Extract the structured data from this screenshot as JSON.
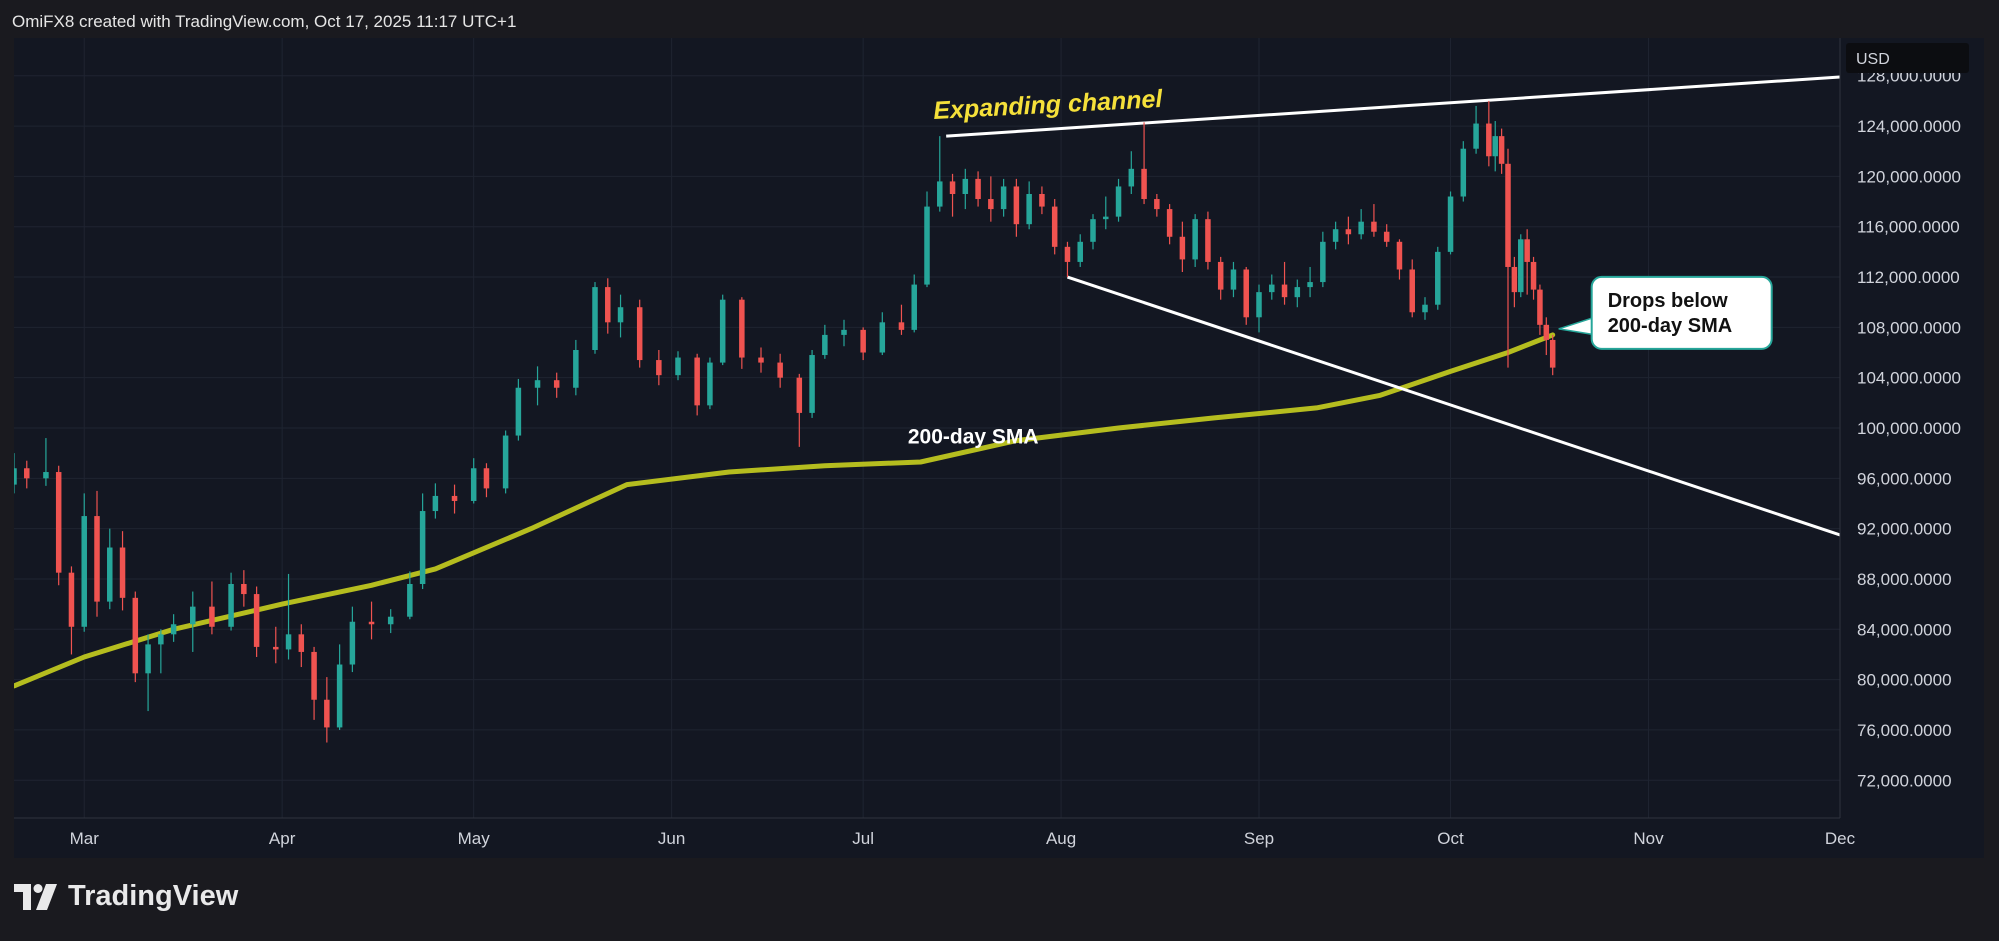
{
  "header": {
    "text": "OmiFX8 created with TradingView.com, Oct 17, 2025 11:17 UTC+1"
  },
  "footer": {
    "brand": "TradingView",
    "logo_icon": "tradingview-logo-icon"
  },
  "colors": {
    "background": "#131722",
    "up": "#26a69a",
    "down": "#ef5350",
    "sma": "#b5bd1f",
    "trendline": "#ffffff",
    "annotation_title": "#f5e03a"
  },
  "chart_data": {
    "type": "candlestick",
    "currency_label": "USD",
    "ylim": [
      69000,
      131000
    ],
    "y_ticks": [
      128000,
      124000,
      120000,
      116000,
      112000,
      108000,
      104000,
      100000,
      96000,
      92000,
      88000,
      84000,
      80000,
      76000,
      72000
    ],
    "y_tick_labels": [
      "128,000.0000",
      "124,000.0000",
      "120,000.0000",
      "116,000.0000",
      "112,000.0000",
      "108,000.0000",
      "104,000.0000",
      "100,000.0000",
      "96,000.0000",
      "92,000.0000",
      "88,000.0000",
      "84,000.0000",
      "80,000.0000",
      "76,000.0000",
      "72,000.0000"
    ],
    "x_range": [
      "2025-02-18",
      "2025-12-01"
    ],
    "x_ticks": [
      "2025-03-01",
      "2025-04-01",
      "2025-05-01",
      "2025-06-01",
      "2025-07-01",
      "2025-08-01",
      "2025-09-01",
      "2025-10-01",
      "2025-11-01",
      "2025-12-01"
    ],
    "x_tick_labels": [
      "Mar",
      "Apr",
      "May",
      "Jun",
      "Jul",
      "Aug",
      "Sep",
      "Oct",
      "Nov",
      "Dec"
    ],
    "sma_label": "200-day SMA",
    "sma_200": [
      {
        "date": "2025-02-18",
        "value": 79500
      },
      {
        "date": "2025-03-01",
        "value": 81800
      },
      {
        "date": "2025-03-15",
        "value": 84000
      },
      {
        "date": "2025-04-01",
        "value": 86000
      },
      {
        "date": "2025-04-15",
        "value": 87500
      },
      {
        "date": "2025-04-25",
        "value": 88800
      },
      {
        "date": "2025-05-10",
        "value": 92000
      },
      {
        "date": "2025-05-25",
        "value": 95500
      },
      {
        "date": "2025-06-10",
        "value": 96500
      },
      {
        "date": "2025-06-25",
        "value": 97000
      },
      {
        "date": "2025-07-10",
        "value": 97300
      },
      {
        "date": "2025-07-25",
        "value": 99000
      },
      {
        "date": "2025-08-10",
        "value": 100000
      },
      {
        "date": "2025-08-25",
        "value": 100800
      },
      {
        "date": "2025-09-10",
        "value": 101600
      },
      {
        "date": "2025-09-20",
        "value": 102600
      },
      {
        "date": "2025-10-01",
        "value": 104500
      },
      {
        "date": "2025-10-10",
        "value": 106000
      },
      {
        "date": "2025-10-17",
        "value": 107400
      }
    ],
    "trendlines": [
      {
        "name": "channel-upper",
        "from": {
          "date": "2025-07-14",
          "value": 123200
        },
        "to": {
          "date": "2025-12-01",
          "value": 127900
        }
      },
      {
        "name": "channel-lower",
        "from": {
          "date": "2025-08-02",
          "value": 112000
        },
        "to": {
          "date": "2025-12-01",
          "value": 91500
        }
      }
    ],
    "annotations": [
      {
        "text": "Expanding channel",
        "date": "2025-07-12",
        "value": 125200
      },
      {
        "text": "200-day SMA",
        "date": "2025-07-08",
        "value": 99400
      },
      {
        "lines": [
          "Drops below",
          "200-day SMA"
        ],
        "date": "2025-10-17",
        "value": 107400,
        "type": "callout"
      }
    ],
    "candles": [
      {
        "date": "2025-02-18",
        "open": 95500,
        "high": 98000,
        "low": 94800,
        "close": 96800
      },
      {
        "date": "2025-02-20",
        "open": 96800,
        "high": 97400,
        "low": 95200,
        "close": 96000
      },
      {
        "date": "2025-02-23",
        "open": 96000,
        "high": 99200,
        "low": 95400,
        "close": 96500
      },
      {
        "date": "2025-02-25",
        "open": 96500,
        "high": 97000,
        "low": 87500,
        "close": 88500
      },
      {
        "date": "2025-02-27",
        "open": 88500,
        "high": 89000,
        "low": 82000,
        "close": 84200
      },
      {
        "date": "2025-03-01",
        "open": 84200,
        "high": 94800,
        "low": 83800,
        "close": 93000
      },
      {
        "date": "2025-03-03",
        "open": 93000,
        "high": 95000,
        "low": 85000,
        "close": 86200
      },
      {
        "date": "2025-03-05",
        "open": 86200,
        "high": 92000,
        "low": 85600,
        "close": 90500
      },
      {
        "date": "2025-03-07",
        "open": 90500,
        "high": 91800,
        "low": 85500,
        "close": 86500
      },
      {
        "date": "2025-03-09",
        "open": 86500,
        "high": 87000,
        "low": 79800,
        "close": 80500
      },
      {
        "date": "2025-03-11",
        "open": 80500,
        "high": 83600,
        "low": 77500,
        "close": 82800
      },
      {
        "date": "2025-03-13",
        "open": 82800,
        "high": 84000,
        "low": 80500,
        "close": 83600
      },
      {
        "date": "2025-03-15",
        "open": 83600,
        "high": 85200,
        "low": 83000,
        "close": 84400
      },
      {
        "date": "2025-03-18",
        "open": 84400,
        "high": 87000,
        "low": 82200,
        "close": 85800
      },
      {
        "date": "2025-03-21",
        "open": 85800,
        "high": 87800,
        "low": 83600,
        "close": 84200
      },
      {
        "date": "2025-03-24",
        "open": 84200,
        "high": 88500,
        "low": 83900,
        "close": 87600
      },
      {
        "date": "2025-03-26",
        "open": 87600,
        "high": 88700,
        "low": 85800,
        "close": 86800
      },
      {
        "date": "2025-03-28",
        "open": 86800,
        "high": 87400,
        "low": 81800,
        "close": 82600
      },
      {
        "date": "2025-03-31",
        "open": 82600,
        "high": 84200,
        "low": 81300,
        "close": 82400
      },
      {
        "date": "2025-04-02",
        "open": 82400,
        "high": 88400,
        "low": 81600,
        "close": 83600
      },
      {
        "date": "2025-04-04",
        "open": 83600,
        "high": 84400,
        "low": 81000,
        "close": 82200
      },
      {
        "date": "2025-04-06",
        "open": 82200,
        "high": 82600,
        "low": 76800,
        "close": 78400
      },
      {
        "date": "2025-04-08",
        "open": 78400,
        "high": 80200,
        "low": 75000,
        "close": 76200
      },
      {
        "date": "2025-04-10",
        "open": 76200,
        "high": 82800,
        "low": 76000,
        "close": 81200
      },
      {
        "date": "2025-04-12",
        "open": 81200,
        "high": 85800,
        "low": 80600,
        "close": 84600
      },
      {
        "date": "2025-04-15",
        "open": 84600,
        "high": 86200,
        "low": 83200,
        "close": 84400
      },
      {
        "date": "2025-04-18",
        "open": 84400,
        "high": 85600,
        "low": 83700,
        "close": 85000
      },
      {
        "date": "2025-04-21",
        "open": 85000,
        "high": 88600,
        "low": 84800,
        "close": 87600
      },
      {
        "date": "2025-04-23",
        "open": 87600,
        "high": 94800,
        "low": 87200,
        "close": 93400
      },
      {
        "date": "2025-04-25",
        "open": 93400,
        "high": 95600,
        "low": 92800,
        "close": 94600
      },
      {
        "date": "2025-04-28",
        "open": 94600,
        "high": 95500,
        "low": 93200,
        "close": 94200
      },
      {
        "date": "2025-05-01",
        "open": 94200,
        "high": 97600,
        "low": 94000,
        "close": 96800
      },
      {
        "date": "2025-05-03",
        "open": 96800,
        "high": 97200,
        "low": 94500,
        "close": 95200
      },
      {
        "date": "2025-05-06",
        "open": 95200,
        "high": 99800,
        "low": 94800,
        "close": 99400
      },
      {
        "date": "2025-05-08",
        "open": 99400,
        "high": 103900,
        "low": 99000,
        "close": 103200
      },
      {
        "date": "2025-05-11",
        "open": 103200,
        "high": 104900,
        "low": 101800,
        "close": 103800
      },
      {
        "date": "2025-05-14",
        "open": 103800,
        "high": 104400,
        "low": 102400,
        "close": 103200
      },
      {
        "date": "2025-05-17",
        "open": 103200,
        "high": 107000,
        "low": 102600,
        "close": 106200
      },
      {
        "date": "2025-05-20",
        "open": 106200,
        "high": 111600,
        "low": 105900,
        "close": 111200
      },
      {
        "date": "2025-05-22",
        "open": 111200,
        "high": 111900,
        "low": 107500,
        "close": 108400
      },
      {
        "date": "2025-05-24",
        "open": 108400,
        "high": 110600,
        "low": 107200,
        "close": 109600
      },
      {
        "date": "2025-05-27",
        "open": 109600,
        "high": 110200,
        "low": 104800,
        "close": 105400
      },
      {
        "date": "2025-05-30",
        "open": 105400,
        "high": 106200,
        "low": 103400,
        "close": 104200
      },
      {
        "date": "2025-06-02",
        "open": 104200,
        "high": 106100,
        "low": 103800,
        "close": 105600
      },
      {
        "date": "2025-06-05",
        "open": 105600,
        "high": 105900,
        "low": 101000,
        "close": 101800
      },
      {
        "date": "2025-06-07",
        "open": 101800,
        "high": 105600,
        "low": 101500,
        "close": 105200
      },
      {
        "date": "2025-06-09",
        "open": 105200,
        "high": 110600,
        "low": 105000,
        "close": 110200
      },
      {
        "date": "2025-06-12",
        "open": 110200,
        "high": 110400,
        "low": 104700,
        "close": 105600
      },
      {
        "date": "2025-06-15",
        "open": 105600,
        "high": 106400,
        "low": 104400,
        "close": 105200
      },
      {
        "date": "2025-06-18",
        "open": 105200,
        "high": 105900,
        "low": 103200,
        "close": 104000
      },
      {
        "date": "2025-06-21",
        "open": 104000,
        "high": 104300,
        "low": 98500,
        "close": 101200
      },
      {
        "date": "2025-06-23",
        "open": 101200,
        "high": 106200,
        "low": 100800,
        "close": 105800
      },
      {
        "date": "2025-06-25",
        "open": 105800,
        "high": 108200,
        "low": 105500,
        "close": 107400
      },
      {
        "date": "2025-06-28",
        "open": 107400,
        "high": 108600,
        "low": 106500,
        "close": 107800
      },
      {
        "date": "2025-07-01",
        "open": 107800,
        "high": 108000,
        "low": 105400,
        "close": 106000
      },
      {
        "date": "2025-07-04",
        "open": 106000,
        "high": 109200,
        "low": 105800,
        "close": 108400
      },
      {
        "date": "2025-07-07",
        "open": 108400,
        "high": 109800,
        "low": 107400,
        "close": 107800
      },
      {
        "date": "2025-07-09",
        "open": 107800,
        "high": 112200,
        "low": 107600,
        "close": 111400
      },
      {
        "date": "2025-07-11",
        "open": 111400,
        "high": 118800,
        "low": 111200,
        "close": 117600
      },
      {
        "date": "2025-07-13",
        "open": 117600,
        "high": 123200,
        "low": 117200,
        "close": 119600
      },
      {
        "date": "2025-07-15",
        "open": 119600,
        "high": 120200,
        "low": 116800,
        "close": 118600
      },
      {
        "date": "2025-07-17",
        "open": 118600,
        "high": 120600,
        "low": 117400,
        "close": 119800
      },
      {
        "date": "2025-07-19",
        "open": 119800,
        "high": 120400,
        "low": 117600,
        "close": 118200
      },
      {
        "date": "2025-07-21",
        "open": 118200,
        "high": 120000,
        "low": 116400,
        "close": 117400
      },
      {
        "date": "2025-07-23",
        "open": 117400,
        "high": 119800,
        "low": 116800,
        "close": 119200
      },
      {
        "date": "2025-07-25",
        "open": 119200,
        "high": 119800,
        "low": 115200,
        "close": 116200
      },
      {
        "date": "2025-07-27",
        "open": 116200,
        "high": 119600,
        "low": 115800,
        "close": 118600
      },
      {
        "date": "2025-07-29",
        "open": 118600,
        "high": 119200,
        "low": 117000,
        "close": 117600
      },
      {
        "date": "2025-07-31",
        "open": 117600,
        "high": 118200,
        "low": 113800,
        "close": 114400
      },
      {
        "date": "2025-08-02",
        "open": 114400,
        "high": 114800,
        "low": 112000,
        "close": 113200
      },
      {
        "date": "2025-08-04",
        "open": 113200,
        "high": 115400,
        "low": 112800,
        "close": 114800
      },
      {
        "date": "2025-08-06",
        "open": 114800,
        "high": 117000,
        "low": 114200,
        "close": 116600
      },
      {
        "date": "2025-08-08",
        "open": 116600,
        "high": 118400,
        "low": 115800,
        "close": 116800
      },
      {
        "date": "2025-08-10",
        "open": 116800,
        "high": 119800,
        "low": 116400,
        "close": 119200
      },
      {
        "date": "2025-08-12",
        "open": 119200,
        "high": 122000,
        "low": 118600,
        "close": 120600
      },
      {
        "date": "2025-08-14",
        "open": 120600,
        "high": 124300,
        "low": 117800,
        "close": 118200
      },
      {
        "date": "2025-08-16",
        "open": 118200,
        "high": 118600,
        "low": 116800,
        "close": 117400
      },
      {
        "date": "2025-08-18",
        "open": 117400,
        "high": 117800,
        "low": 114600,
        "close": 115200
      },
      {
        "date": "2025-08-20",
        "open": 115200,
        "high": 116400,
        "low": 112400,
        "close": 113400
      },
      {
        "date": "2025-08-22",
        "open": 113400,
        "high": 117000,
        "low": 112800,
        "close": 116600
      },
      {
        "date": "2025-08-24",
        "open": 116600,
        "high": 117200,
        "low": 112600,
        "close": 113200
      },
      {
        "date": "2025-08-26",
        "open": 113200,
        "high": 113600,
        "low": 110200,
        "close": 111000
      },
      {
        "date": "2025-08-28",
        "open": 111000,
        "high": 113200,
        "low": 110400,
        "close": 112600
      },
      {
        "date": "2025-08-30",
        "open": 112600,
        "high": 112800,
        "low": 108200,
        "close": 108800
      },
      {
        "date": "2025-09-01",
        "open": 108800,
        "high": 111400,
        "low": 107600,
        "close": 110800
      },
      {
        "date": "2025-09-03",
        "open": 110800,
        "high": 112200,
        "low": 110200,
        "close": 111400
      },
      {
        "date": "2025-09-05",
        "open": 111400,
        "high": 113200,
        "low": 109800,
        "close": 110400
      },
      {
        "date": "2025-09-07",
        "open": 110400,
        "high": 111800,
        "low": 109600,
        "close": 111200
      },
      {
        "date": "2025-09-09",
        "open": 111200,
        "high": 112800,
        "low": 110400,
        "close": 111600
      },
      {
        "date": "2025-09-11",
        "open": 111600,
        "high": 115600,
        "low": 111200,
        "close": 114800
      },
      {
        "date": "2025-09-13",
        "open": 114800,
        "high": 116400,
        "low": 114200,
        "close": 115800
      },
      {
        "date": "2025-09-15",
        "open": 115800,
        "high": 116800,
        "low": 114600,
        "close": 115400
      },
      {
        "date": "2025-09-17",
        "open": 115400,
        "high": 117400,
        "low": 115000,
        "close": 116400
      },
      {
        "date": "2025-09-19",
        "open": 116400,
        "high": 117800,
        "low": 115200,
        "close": 115600
      },
      {
        "date": "2025-09-21",
        "open": 115600,
        "high": 116200,
        "low": 114400,
        "close": 114800
      },
      {
        "date": "2025-09-23",
        "open": 114800,
        "high": 115000,
        "low": 111800,
        "close": 112600
      },
      {
        "date": "2025-09-25",
        "open": 112600,
        "high": 113400,
        "low": 108800,
        "close": 109200
      },
      {
        "date": "2025-09-27",
        "open": 109200,
        "high": 110400,
        "low": 108600,
        "close": 109800
      },
      {
        "date": "2025-09-29",
        "open": 109800,
        "high": 114400,
        "low": 109400,
        "close": 114000
      },
      {
        "date": "2025-10-01",
        "open": 114000,
        "high": 118800,
        "low": 113800,
        "close": 118400
      },
      {
        "date": "2025-10-03",
        "open": 118400,
        "high": 122800,
        "low": 118000,
        "close": 122200
      },
      {
        "date": "2025-10-05",
        "open": 122200,
        "high": 125600,
        "low": 121800,
        "close": 124200
      },
      {
        "date": "2025-10-07",
        "open": 124200,
        "high": 126000,
        "low": 120800,
        "close": 121600
      },
      {
        "date": "2025-10-08",
        "open": 121600,
        "high": 124400,
        "low": 120400,
        "close": 123200
      },
      {
        "date": "2025-10-09",
        "open": 123200,
        "high": 123800,
        "low": 120200,
        "close": 121000
      },
      {
        "date": "2025-10-10",
        "open": 121000,
        "high": 122200,
        "low": 104800,
        "close": 112800
      },
      {
        "date": "2025-10-11",
        "open": 112800,
        "high": 113600,
        "low": 109600,
        "close": 110800
      },
      {
        "date": "2025-10-12",
        "open": 110800,
        "high": 115400,
        "low": 110400,
        "close": 115000
      },
      {
        "date": "2025-10-13",
        "open": 115000,
        "high": 115800,
        "low": 110600,
        "close": 113200
      },
      {
        "date": "2025-10-14",
        "open": 113200,
        "high": 113600,
        "low": 110200,
        "close": 111000
      },
      {
        "date": "2025-10-15",
        "open": 111000,
        "high": 111400,
        "low": 107400,
        "close": 108200
      },
      {
        "date": "2025-10-16",
        "open": 108200,
        "high": 108800,
        "low": 105800,
        "close": 107000
      },
      {
        "date": "2025-10-17",
        "open": 107000,
        "high": 107400,
        "low": 104200,
        "close": 104800
      }
    ]
  }
}
